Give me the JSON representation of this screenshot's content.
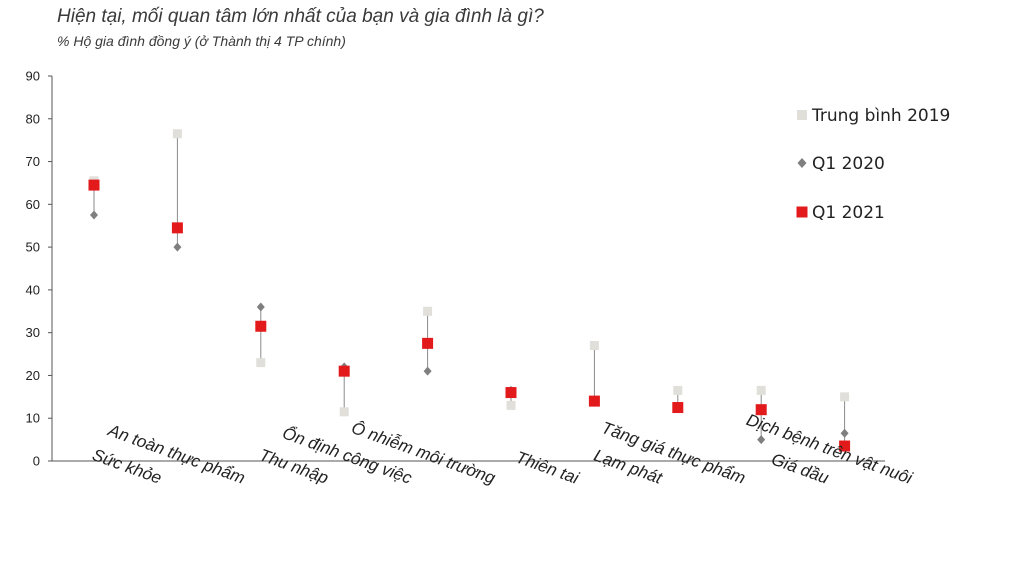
{
  "title": "Hiện tại, mối quan tâm lớn nhất của bạn và gia đình là gì?",
  "subtitle": "% Hộ gia đình đồng ý (ở Thành thị 4 TP chính)",
  "colors": {
    "avg2019": "#e0dfda",
    "q1_2020": "#7f7f7f",
    "q1_2021": "#e31a1c",
    "connector": "#8a8a8a",
    "axis": "#555555"
  },
  "chart_data": {
    "type": "scatter",
    "title": "Hiện tại, mối quan tâm lớn nhất của bạn và gia đình là gì?",
    "subtitle": "% Hộ gia đình đồng ý (ở Thành thị 4 TP chính)",
    "ylim": [
      0,
      90
    ],
    "yticks": [
      0,
      10,
      20,
      30,
      40,
      50,
      60,
      70,
      80,
      90
    ],
    "grid": false,
    "legend_position": "right",
    "categories": [
      "Sức khỏe",
      "An toàn thực phẩm",
      "Thu nhập",
      "Ổn định công việc",
      "Ô nhiễm môi trường",
      "Thiên tai",
      "Lạm phát",
      "Tăng giá thực phẩm",
      "Giá dầu",
      "Dịch bệnh trên vật nuôi"
    ],
    "series": [
      {
        "name": "Trung bình 2019",
        "marker": "square",
        "values": [
          65.5,
          76.5,
          23,
          11.5,
          35,
          13,
          27,
          16.5,
          16.5,
          15
        ]
      },
      {
        "name": "Q1 2020",
        "marker": "diamond",
        "values": [
          57.5,
          50,
          36,
          22,
          21,
          16.5,
          14,
          12.5,
          5,
          6.5
        ]
      },
      {
        "name": "Q1 2021",
        "marker": "square",
        "values": [
          64.5,
          54.5,
          31.5,
          21,
          27.5,
          16,
          14,
          12.5,
          12,
          3.5
        ]
      }
    ]
  }
}
